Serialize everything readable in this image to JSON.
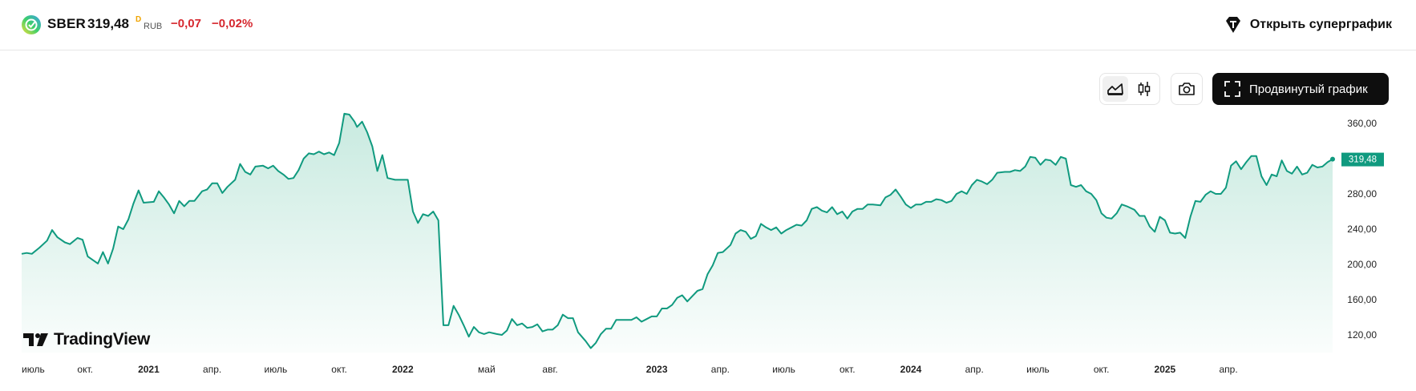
{
  "header": {
    "ticker": "SBER",
    "price": "319,48",
    "price_mark": "D",
    "currency": "RUB",
    "change_abs": "−0,07",
    "change_pct": "−0,02%",
    "supergraph_label": "Открыть суперграфик",
    "logo_icon": "sber-logo-icon"
  },
  "toolbar": {
    "area_icon": "area-chart-icon",
    "candles_icon": "candlestick-icon",
    "camera_icon": "camera-icon",
    "advanced_label": "Продвинутый график",
    "advanced_icon": "fullscreen-icon"
  },
  "branding": {
    "name": "TradingView"
  },
  "colors": {
    "line": "#109a7f",
    "area_top": "#c5e9de",
    "down": "#d6282f",
    "label_bg": "#109a7f"
  },
  "chart_data": {
    "type": "area",
    "ylim": [
      100,
      370
    ],
    "y_ticks": [
      {
        "v": 360,
        "label": "360,00"
      },
      {
        "v": 280,
        "label": "280,00"
      },
      {
        "v": 240,
        "label": "240,00"
      },
      {
        "v": 200,
        "label": "200,00"
      },
      {
        "v": 160,
        "label": "160,00"
      },
      {
        "v": 120,
        "label": "120,00"
      }
    ],
    "last_value_label": "319,48",
    "x_ticks": [
      {
        "t": 2020.5,
        "label": "июль",
        "bold": false
      },
      {
        "t": 2020.75,
        "label": "окт.",
        "bold": false
      },
      {
        "t": 2021.0,
        "label": "2021",
        "bold": true
      },
      {
        "t": 2021.25,
        "label": "апр.",
        "bold": false
      },
      {
        "t": 2021.5,
        "label": "июль",
        "bold": false
      },
      {
        "t": 2021.75,
        "label": "окт.",
        "bold": false
      },
      {
        "t": 2022.0,
        "label": "2022",
        "bold": true
      },
      {
        "t": 2022.33,
        "label": "май",
        "bold": false
      },
      {
        "t": 2022.58,
        "label": "авг.",
        "bold": false
      },
      {
        "t": 2023.0,
        "label": "2023",
        "bold": true
      },
      {
        "t": 2023.25,
        "label": "апр.",
        "bold": false
      },
      {
        "t": 2023.5,
        "label": "июль",
        "bold": false
      },
      {
        "t": 2023.75,
        "label": "окт.",
        "bold": false
      },
      {
        "t": 2024.0,
        "label": "2024",
        "bold": true
      },
      {
        "t": 2024.25,
        "label": "апр.",
        "bold": false
      },
      {
        "t": 2024.5,
        "label": "июль",
        "bold": false
      },
      {
        "t": 2024.75,
        "label": "окт.",
        "bold": false
      },
      {
        "t": 2025.0,
        "label": "2025",
        "bold": true
      },
      {
        "t": 2025.25,
        "label": "апр.",
        "bold": false
      }
    ],
    "series": [
      {
        "points": [
          [
            2020.5,
            212
          ],
          [
            2020.52,
            213
          ],
          [
            2020.54,
            212
          ],
          [
            2020.57,
            219
          ],
          [
            2020.6,
            227
          ],
          [
            2020.62,
            239
          ],
          [
            2020.64,
            231
          ],
          [
            2020.67,
            225
          ],
          [
            2020.69,
            223
          ],
          [
            2020.72,
            230
          ],
          [
            2020.74,
            228
          ],
          [
            2020.76,
            209
          ],
          [
            2020.8,
            201
          ],
          [
            2020.82,
            214
          ],
          [
            2020.84,
            201
          ],
          [
            2020.86,
            218
          ],
          [
            2020.88,
            243
          ],
          [
            2020.9,
            240
          ],
          [
            2020.92,
            251
          ],
          [
            2020.94,
            269
          ],
          [
            2020.96,
            284
          ],
          [
            2020.98,
            270
          ],
          [
            2021.02,
            271
          ],
          [
            2021.04,
            283
          ],
          [
            2021.06,
            276
          ],
          [
            2021.08,
            268
          ],
          [
            2021.1,
            258
          ],
          [
            2021.12,
            272
          ],
          [
            2021.14,
            266
          ],
          [
            2021.16,
            272
          ],
          [
            2021.18,
            272
          ],
          [
            2021.21,
            283
          ],
          [
            2021.23,
            285
          ],
          [
            2021.25,
            292
          ],
          [
            2021.27,
            292
          ],
          [
            2021.29,
            281
          ],
          [
            2021.31,
            288
          ],
          [
            2021.34,
            296
          ],
          [
            2021.36,
            314
          ],
          [
            2021.38,
            305
          ],
          [
            2021.4,
            302
          ],
          [
            2021.42,
            311
          ],
          [
            2021.45,
            312
          ],
          [
            2021.47,
            309
          ],
          [
            2021.49,
            312
          ],
          [
            2021.51,
            306
          ],
          [
            2021.53,
            302
          ],
          [
            2021.55,
            297
          ],
          [
            2021.57,
            298
          ],
          [
            2021.59,
            307
          ],
          [
            2021.61,
            320
          ],
          [
            2021.63,
            326
          ],
          [
            2021.65,
            325
          ],
          [
            2021.67,
            328
          ],
          [
            2021.69,
            325
          ],
          [
            2021.71,
            327
          ],
          [
            2021.73,
            324
          ],
          [
            2021.75,
            338
          ],
          [
            2021.77,
            371
          ],
          [
            2021.79,
            370
          ],
          [
            2021.81,
            362
          ],
          [
            2021.82,
            356
          ],
          [
            2021.84,
            362
          ],
          [
            2021.86,
            350
          ],
          [
            2021.88,
            334
          ],
          [
            2021.9,
            306
          ],
          [
            2021.92,
            324
          ],
          [
            2021.94,
            298
          ],
          [
            2021.97,
            296
          ],
          [
            2022.0,
            296
          ],
          [
            2022.02,
            296
          ],
          [
            2022.04,
            260
          ],
          [
            2022.06,
            247
          ],
          [
            2022.08,
            257
          ],
          [
            2022.1,
            255
          ],
          [
            2022.12,
            260
          ],
          [
            2022.14,
            250
          ],
          [
            2022.16,
            131
          ],
          [
            2022.18,
            131
          ],
          [
            2022.2,
            153
          ],
          [
            2022.22,
            143
          ],
          [
            2022.24,
            131
          ],
          [
            2022.26,
            118
          ],
          [
            2022.28,
            129
          ],
          [
            2022.3,
            123
          ],
          [
            2022.32,
            121
          ],
          [
            2022.34,
            123
          ],
          [
            2022.37,
            121
          ],
          [
            2022.39,
            120
          ],
          [
            2022.41,
            125
          ],
          [
            2022.43,
            138
          ],
          [
            2022.45,
            131
          ],
          [
            2022.47,
            133
          ],
          [
            2022.49,
            128
          ],
          [
            2022.51,
            129
          ],
          [
            2022.53,
            132
          ],
          [
            2022.55,
            124
          ],
          [
            2022.57,
            126
          ],
          [
            2022.59,
            126
          ],
          [
            2022.61,
            131
          ],
          [
            2022.63,
            143
          ],
          [
            2022.65,
            139
          ],
          [
            2022.67,
            139
          ],
          [
            2022.69,
            123
          ],
          [
            2022.72,
            113
          ],
          [
            2022.74,
            105
          ],
          [
            2022.76,
            111
          ],
          [
            2022.78,
            121
          ],
          [
            2022.8,
            127
          ],
          [
            2022.82,
            127
          ],
          [
            2022.84,
            137
          ],
          [
            2022.86,
            137
          ],
          [
            2022.88,
            137
          ],
          [
            2022.9,
            137
          ],
          [
            2022.92,
            140
          ],
          [
            2022.94,
            135
          ],
          [
            2022.96,
            138
          ],
          [
            2022.98,
            141
          ],
          [
            2023.0,
            141
          ],
          [
            2023.02,
            150
          ],
          [
            2023.04,
            150
          ],
          [
            2023.06,
            154
          ],
          [
            2023.08,
            162
          ],
          [
            2023.1,
            165
          ],
          [
            2023.12,
            158
          ],
          [
            2023.14,
            164
          ],
          [
            2023.16,
            170
          ],
          [
            2023.18,
            172
          ],
          [
            2023.2,
            189
          ],
          [
            2023.22,
            199
          ],
          [
            2023.24,
            213
          ],
          [
            2023.26,
            214
          ],
          [
            2023.29,
            222
          ],
          [
            2023.31,
            235
          ],
          [
            2023.33,
            239
          ],
          [
            2023.35,
            237
          ],
          [
            2023.37,
            229
          ],
          [
            2023.39,
            232
          ],
          [
            2023.41,
            246
          ],
          [
            2023.43,
            242
          ],
          [
            2023.45,
            239
          ],
          [
            2023.47,
            242
          ],
          [
            2023.49,
            235
          ],
          [
            2023.51,
            239
          ],
          [
            2023.53,
            242
          ],
          [
            2023.55,
            245
          ],
          [
            2023.57,
            244
          ],
          [
            2023.59,
            250
          ],
          [
            2023.61,
            263
          ],
          [
            2023.63,
            265
          ],
          [
            2023.65,
            261
          ],
          [
            2023.67,
            259
          ],
          [
            2023.69,
            265
          ],
          [
            2023.71,
            257
          ],
          [
            2023.73,
            260
          ],
          [
            2023.75,
            252
          ],
          [
            2023.77,
            260
          ],
          [
            2023.79,
            263
          ],
          [
            2023.81,
            263
          ],
          [
            2023.83,
            268
          ],
          [
            2023.85,
            268
          ],
          [
            2023.88,
            267
          ],
          [
            2023.9,
            276
          ],
          [
            2023.92,
            279
          ],
          [
            2023.94,
            285
          ],
          [
            2023.96,
            277
          ],
          [
            2023.98,
            268
          ],
          [
            2024.0,
            264
          ],
          [
            2024.02,
            268
          ],
          [
            2024.04,
            268
          ],
          [
            2024.06,
            271
          ],
          [
            2024.08,
            271
          ],
          [
            2024.1,
            274
          ],
          [
            2024.12,
            273
          ],
          [
            2024.14,
            270
          ],
          [
            2024.16,
            272
          ],
          [
            2024.18,
            280
          ],
          [
            2024.2,
            283
          ],
          [
            2024.22,
            280
          ],
          [
            2024.24,
            290
          ],
          [
            2024.26,
            296
          ],
          [
            2024.28,
            294
          ],
          [
            2024.3,
            291
          ],
          [
            2024.32,
            296
          ],
          [
            2024.34,
            304
          ],
          [
            2024.37,
            305
          ],
          [
            2024.39,
            305
          ],
          [
            2024.41,
            307
          ],
          [
            2024.43,
            306
          ],
          [
            2024.45,
            311
          ],
          [
            2024.47,
            322
          ],
          [
            2024.49,
            321
          ],
          [
            2024.51,
            313
          ],
          [
            2024.53,
            319
          ],
          [
            2024.55,
            318
          ],
          [
            2024.57,
            313
          ],
          [
            2024.59,
            322
          ],
          [
            2024.61,
            320
          ],
          [
            2024.63,
            290
          ],
          [
            2024.65,
            288
          ],
          [
            2024.67,
            290
          ],
          [
            2024.69,
            283
          ],
          [
            2024.71,
            280
          ],
          [
            2024.73,
            273
          ],
          [
            2024.75,
            258
          ],
          [
            2024.77,
            253
          ],
          [
            2024.79,
            252
          ],
          [
            2024.81,
            258
          ],
          [
            2024.83,
            268
          ],
          [
            2024.85,
            266
          ],
          [
            2024.88,
            262
          ],
          [
            2024.9,
            255
          ],
          [
            2024.92,
            255
          ],
          [
            2024.94,
            243
          ],
          [
            2024.96,
            237
          ],
          [
            2024.98,
            254
          ],
          [
            2025.0,
            250
          ],
          [
            2025.02,
            236
          ],
          [
            2025.04,
            235
          ],
          [
            2025.06,
            236
          ],
          [
            2025.08,
            230
          ],
          [
            2025.1,
            254
          ],
          [
            2025.12,
            272
          ],
          [
            2025.14,
            271
          ],
          [
            2025.16,
            279
          ],
          [
            2025.18,
            283
          ],
          [
            2025.2,
            280
          ],
          [
            2025.22,
            280
          ],
          [
            2025.24,
            287
          ],
          [
            2025.26,
            312
          ],
          [
            2025.28,
            317
          ],
          [
            2025.3,
            308
          ],
          [
            2025.32,
            316
          ],
          [
            2025.34,
            323
          ],
          [
            2025.36,
            323
          ],
          [
            2025.38,
            300
          ],
          [
            2025.4,
            290
          ],
          [
            2025.42,
            302
          ],
          [
            2025.44,
            300
          ],
          [
            2025.46,
            318
          ],
          [
            2025.48,
            306
          ],
          [
            2025.5,
            303
          ],
          [
            2025.52,
            311
          ],
          [
            2025.54,
            302
          ],
          [
            2025.56,
            304
          ],
          [
            2025.58,
            313
          ],
          [
            2025.6,
            310
          ],
          [
            2025.62,
            311
          ],
          [
            2025.64,
            316
          ],
          [
            2025.66,
            319.48
          ]
        ]
      }
    ]
  }
}
